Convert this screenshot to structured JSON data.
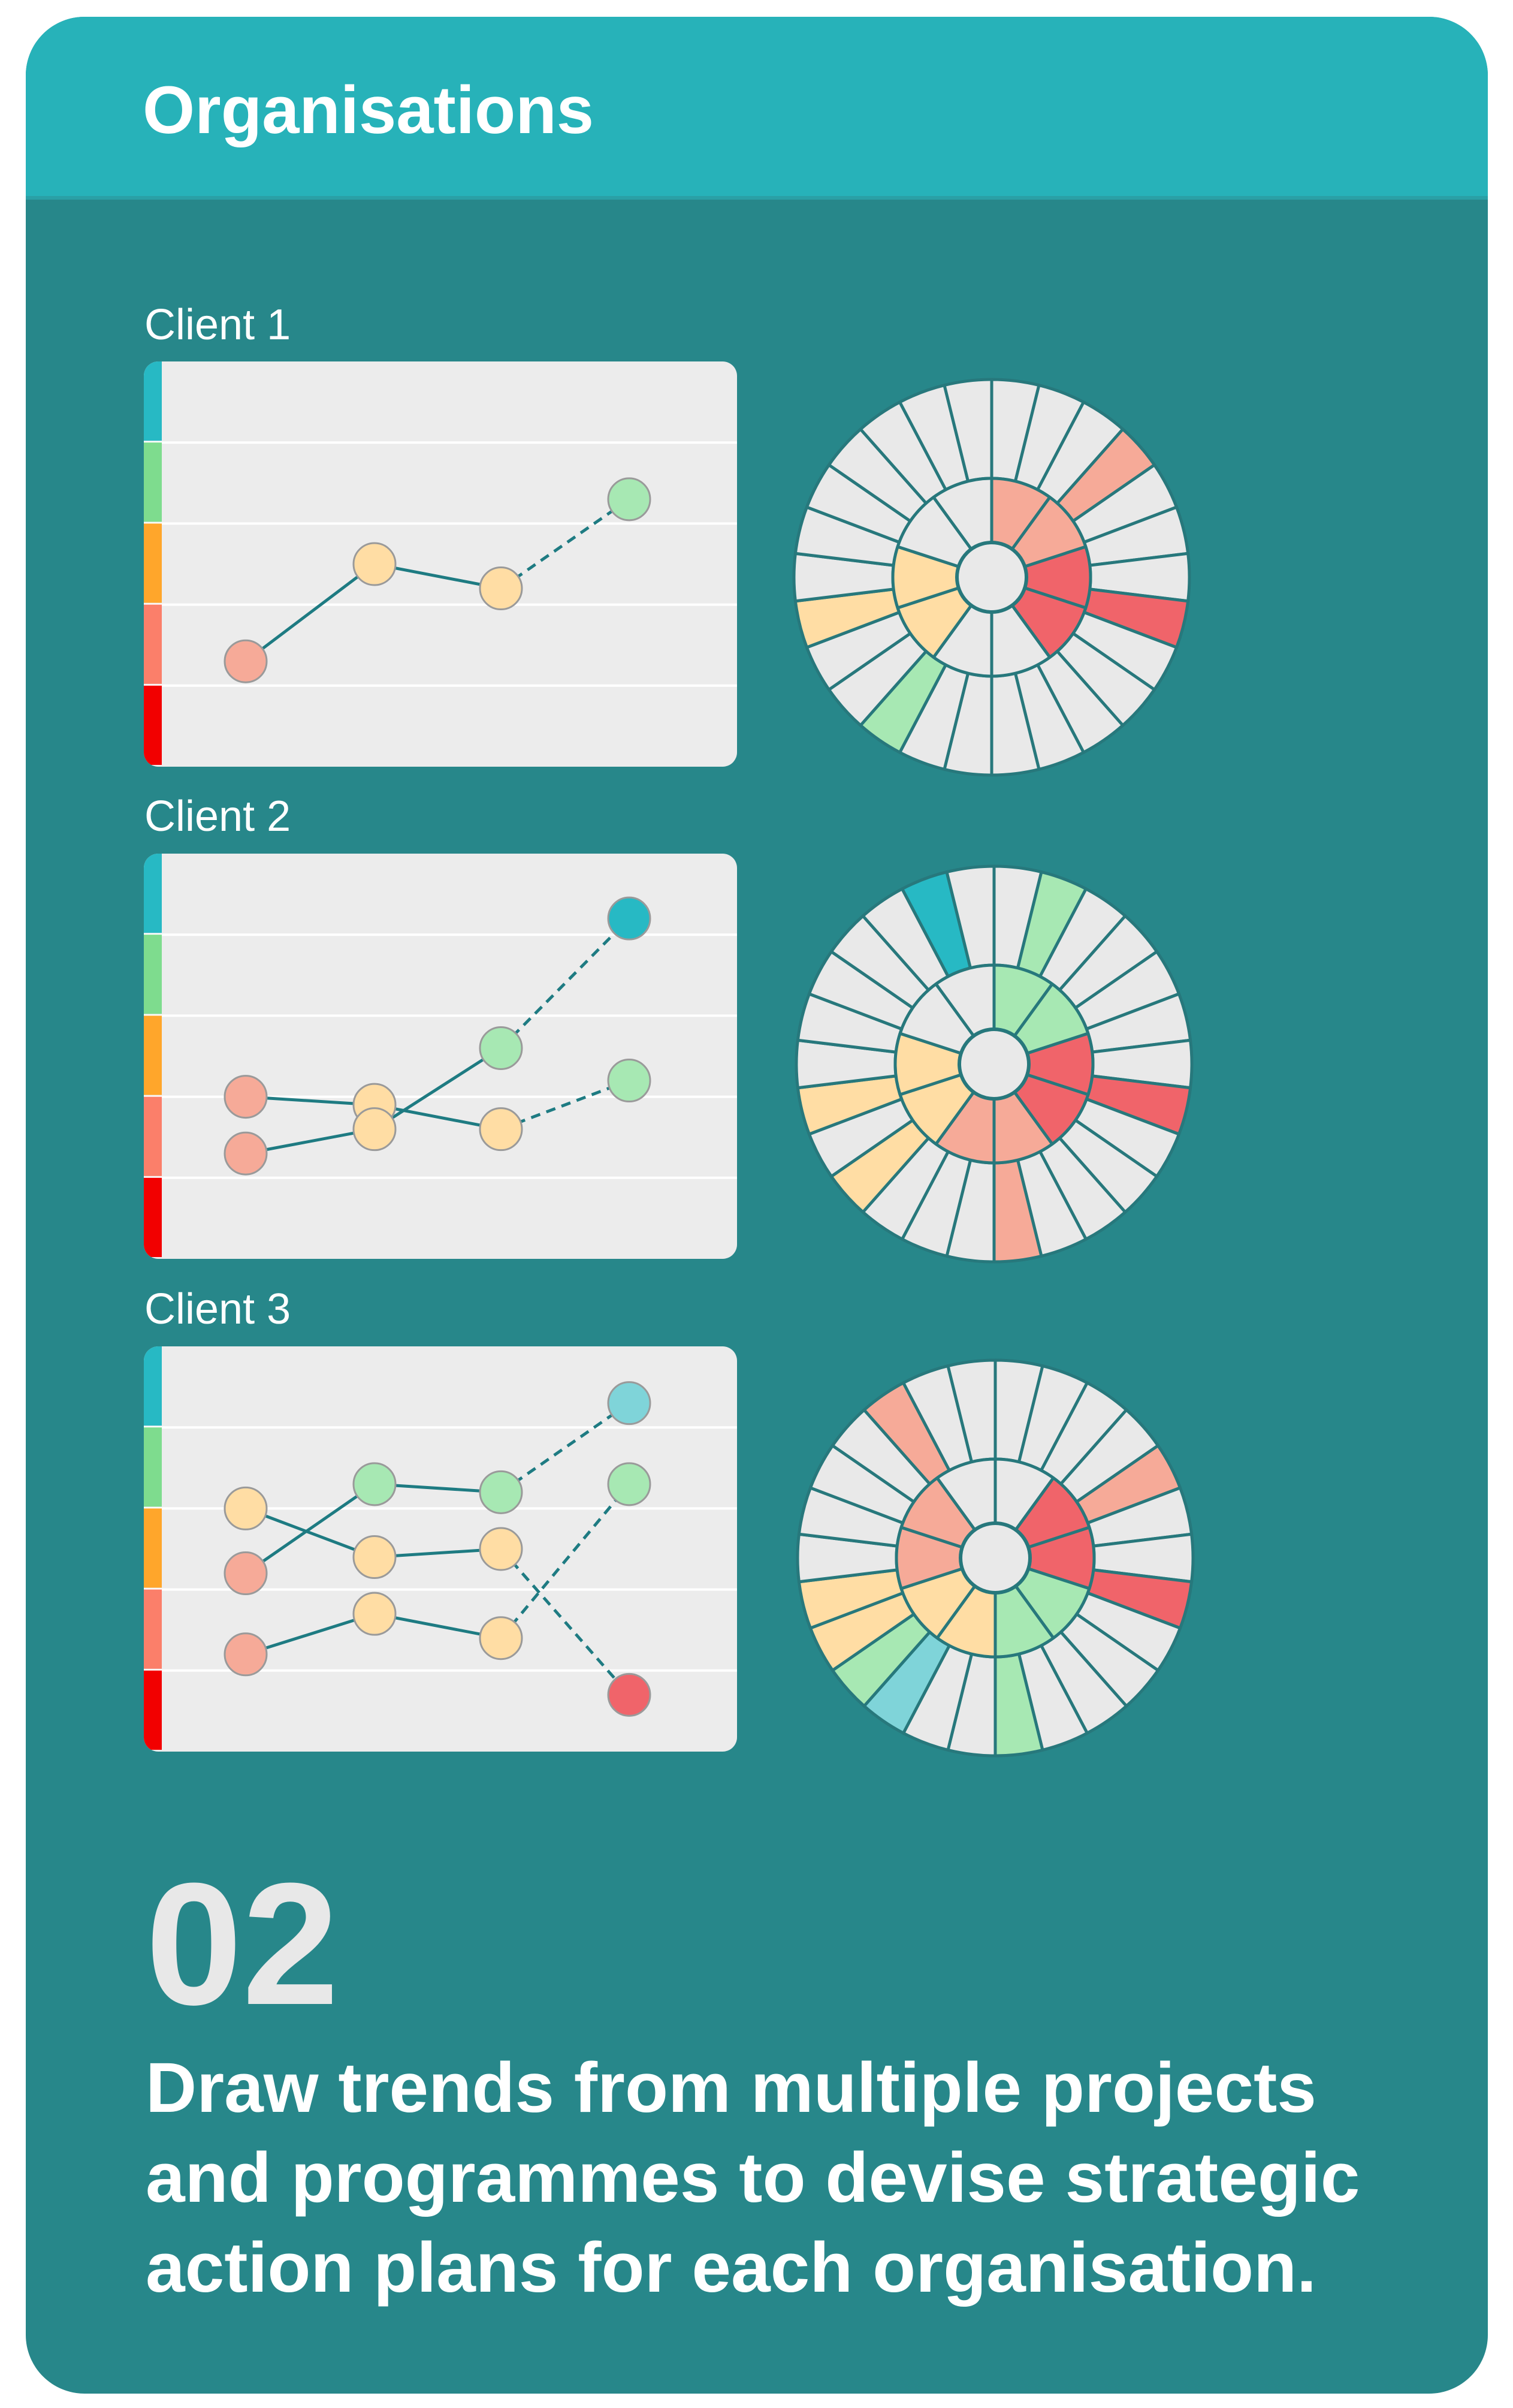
{
  "header": {
    "title": "Organisations"
  },
  "description_lines": [
    "Draw trends from multiple projects",
    "and programmes to devise strategic",
    "action plans for each organisation."
  ],
  "step_number": "02",
  "colors": {
    "card_bg": "#27878A",
    "header_bg": "#27B2B9",
    "panel_bg": "#ECECEC",
    "grey_segment": "#E9E9E9",
    "teal": "#27B9C4",
    "light_teal": "#7FD4D9",
    "green": "#A7E8B3",
    "yellow": "#FFDDA4",
    "salmon": "#F6AA98",
    "red": "#F0646A",
    "band_teal": "#27B9C4",
    "band_green": "#7EDC8E",
    "band_orange": "#FFA62B",
    "band_coral": "#FB7F6A",
    "band_red": "#F20000"
  },
  "clients": [
    {
      "label": "Client 1",
      "trend": {
        "points": [
          {
            "x": 0,
            "level": 1.3,
            "color": "salmon"
          },
          {
            "x": 1,
            "level": 2.5,
            "color": "yellow"
          },
          {
            "x": 2,
            "level": 2.2,
            "color": "yellow"
          },
          {
            "x": 3,
            "level": 3.3,
            "color": "green"
          }
        ],
        "links": [
          {
            "from": 0,
            "to": 1,
            "style": "solid"
          },
          {
            "from": 1,
            "to": 2,
            "style": "solid"
          },
          {
            "from": 2,
            "to": 3,
            "style": "dashed"
          }
        ]
      },
      "wheel": {
        "inner": [
          "salmon",
          "salmon",
          "red",
          "red",
          "grey",
          "grey",
          "yellow",
          "yellow",
          "grey",
          "grey"
        ],
        "outer": [
          "grey",
          "grey",
          "grey",
          "salmon",
          "grey",
          "grey",
          "grey",
          "red",
          "grey",
          "grey",
          "grey",
          "grey",
          "grey",
          "grey",
          "grey",
          "green",
          "grey",
          "grey",
          "yellow",
          "grey",
          "grey",
          "grey",
          "grey",
          "grey",
          "grey",
          "grey"
        ]
      }
    },
    {
      "label": "Client 2",
      "trend": {
        "points": [
          {
            "x": 0,
            "level": 2.0,
            "color": "salmon"
          },
          {
            "x": 1,
            "level": 1.9,
            "color": "yellow"
          },
          {
            "x": 2,
            "level": 1.6,
            "color": "yellow"
          },
          {
            "x": 3,
            "level": 2.2,
            "color": "green"
          },
          {
            "x": 0,
            "level": 1.3,
            "color": "salmon"
          },
          {
            "x": 1,
            "level": 1.6,
            "color": "yellow"
          },
          {
            "x": 2,
            "level": 2.6,
            "color": "green"
          },
          {
            "x": 3,
            "level": 4.2,
            "color": "teal"
          }
        ],
        "links": [
          {
            "from": 0,
            "to": 1,
            "style": "solid"
          },
          {
            "from": 1,
            "to": 2,
            "style": "solid"
          },
          {
            "from": 2,
            "to": 3,
            "style": "dashed"
          },
          {
            "from": 4,
            "to": 5,
            "style": "solid"
          },
          {
            "from": 5,
            "to": 6,
            "style": "solid"
          },
          {
            "from": 6,
            "to": 7,
            "style": "dashed"
          }
        ]
      },
      "wheel": {
        "inner": [
          "green",
          "green",
          "red",
          "red",
          "salmon",
          "salmon",
          "yellow",
          "yellow",
          "grey",
          "grey"
        ],
        "outer": [
          "grey",
          "green",
          "grey",
          "grey",
          "grey",
          "grey",
          "grey",
          "red",
          "grey",
          "grey",
          "grey",
          "grey",
          "salmon",
          "grey",
          "grey",
          "grey",
          "yellow",
          "grey",
          "yellow",
          "grey",
          "grey",
          "grey",
          "grey",
          "grey",
          "teal",
          "grey"
        ]
      }
    },
    {
      "label": "Client 3",
      "trend": {
        "points": [
          {
            "x": 0,
            "level": 3.0,
            "color": "yellow"
          },
          {
            "x": 1,
            "level": 2.4,
            "color": "yellow"
          },
          {
            "x": 2,
            "level": 2.5,
            "color": "yellow"
          },
          {
            "x": 3,
            "level": 0.7,
            "color": "red"
          },
          {
            "x": 0,
            "level": 2.2,
            "color": "salmon"
          },
          {
            "x": 1,
            "level": 3.3,
            "color": "green"
          },
          {
            "x": 2,
            "level": 3.2,
            "color": "green"
          },
          {
            "x": 3,
            "level": 4.3,
            "color": "light_teal"
          },
          {
            "x": 0,
            "level": 1.2,
            "color": "salmon"
          },
          {
            "x": 1,
            "level": 1.7,
            "color": "yellow"
          },
          {
            "x": 2,
            "level": 1.4,
            "color": "yellow"
          },
          {
            "x": 3,
            "level": 3.3,
            "color": "green"
          }
        ],
        "links": [
          {
            "from": 0,
            "to": 1,
            "style": "solid"
          },
          {
            "from": 1,
            "to": 2,
            "style": "solid"
          },
          {
            "from": 2,
            "to": 3,
            "style": "dashed"
          },
          {
            "from": 4,
            "to": 5,
            "style": "solid"
          },
          {
            "from": 5,
            "to": 6,
            "style": "solid"
          },
          {
            "from": 6,
            "to": 7,
            "style": "dashed"
          },
          {
            "from": 8,
            "to": 9,
            "style": "solid"
          },
          {
            "from": 9,
            "to": 10,
            "style": "solid"
          },
          {
            "from": 10,
            "to": 11,
            "style": "dashed"
          }
        ]
      },
      "wheel": {
        "inner": [
          "grey",
          "red",
          "red",
          "green",
          "green",
          "yellow",
          "yellow",
          "salmon",
          "salmon",
          "grey"
        ],
        "outer": [
          "grey",
          "grey",
          "grey",
          "grey",
          "salmon",
          "grey",
          "grey",
          "red",
          "grey",
          "grey",
          "grey",
          "grey",
          "green",
          "grey",
          "grey",
          "light_teal",
          "green",
          "yellow",
          "yellow",
          "grey",
          "grey",
          "grey",
          "grey",
          "salmon",
          "grey",
          "grey"
        ]
      }
    }
  ]
}
